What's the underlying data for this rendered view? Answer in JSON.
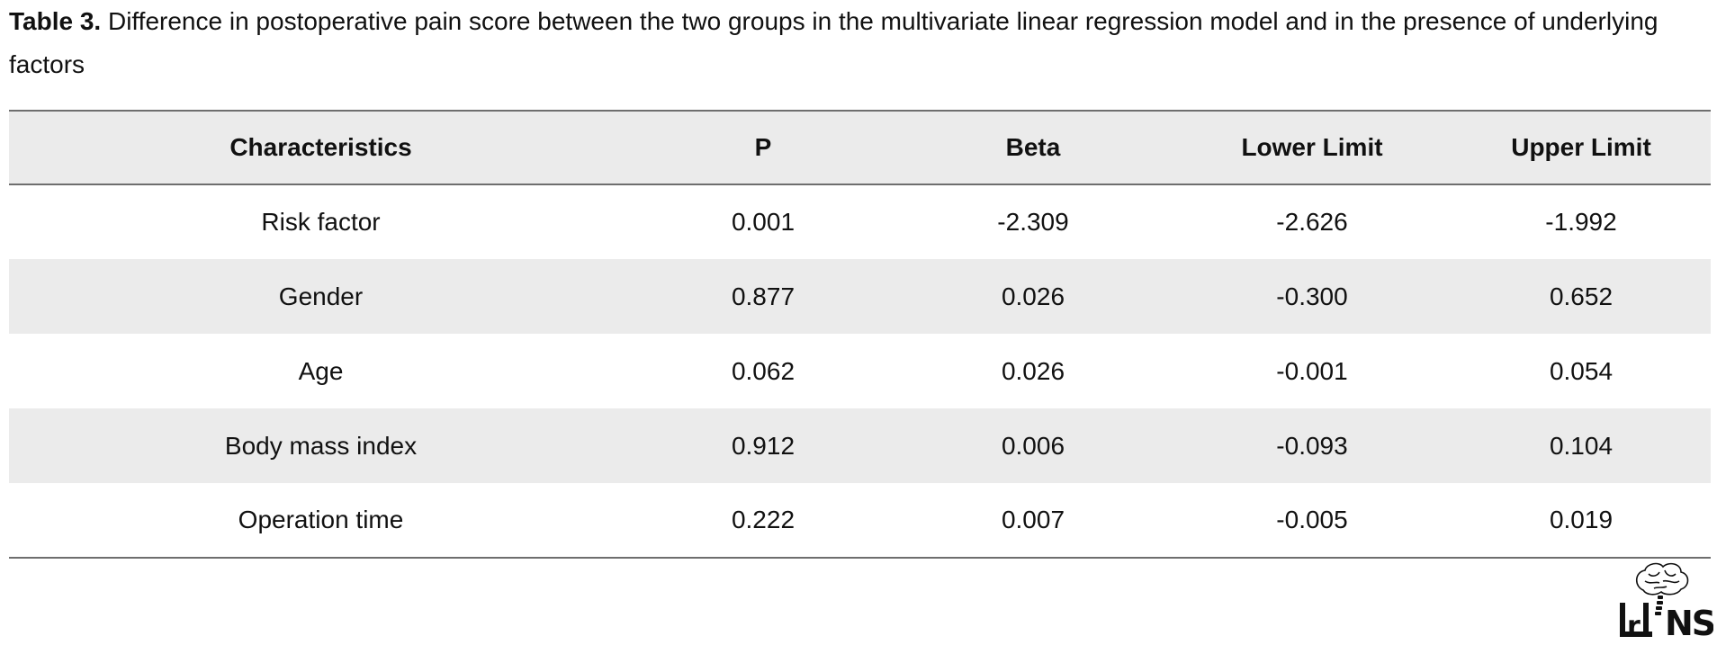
{
  "caption": {
    "label": "Table 3.",
    "text": " Difference in postoperative pain score between the two groups in the multivariate linear regression model and in the presence of underlying factors"
  },
  "table": {
    "headers": [
      "Characteristics",
      "P",
      "Beta",
      "Lower Limit",
      "Upper Limit"
    ],
    "rows": [
      [
        "Risk factor",
        "0.001",
        "-2.309",
        "-2.626",
        "-1.992"
      ],
      [
        "Gender",
        "0.877",
        "0.026",
        "-0.300",
        "0.652"
      ],
      [
        "Age",
        "0.062",
        "0.026",
        "-0.001",
        "0.054"
      ],
      [
        "Body mass index",
        "0.912",
        "0.006",
        "-0.093",
        "0.104"
      ],
      [
        "Operation time",
        "0.222",
        "0.007",
        "-0.005",
        "0.019"
      ]
    ]
  },
  "logo": {
    "text": "IrJNS",
    "icon": "brain-logo-icon"
  }
}
